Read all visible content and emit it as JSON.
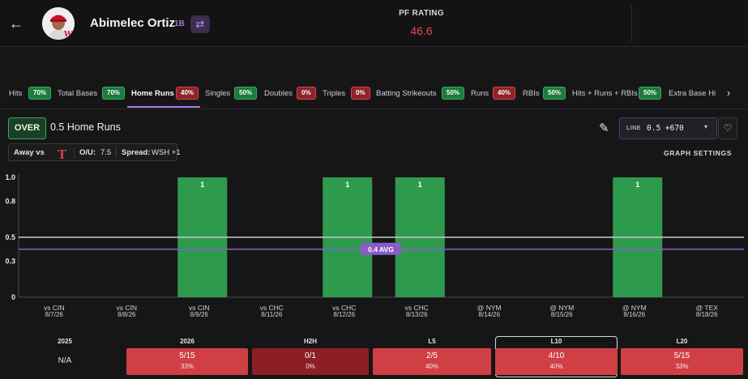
{
  "header": {
    "back_icon": "arrow-left-icon",
    "player_name": "Abimelec Ortiz",
    "position": "1B",
    "swap_icon": "swap-icon",
    "pf_rating_label": "PF RATING",
    "pf_rating_value": "46.6"
  },
  "tabs": [
    {
      "label": "Hits",
      "badge": "70%",
      "tone": "green"
    },
    {
      "label": "Total Bases",
      "badge": "70%",
      "tone": "green"
    },
    {
      "label": "Home Runs",
      "badge": "40%",
      "tone": "red",
      "active": true
    },
    {
      "label": "Singles",
      "badge": "50%",
      "tone": "green"
    },
    {
      "label": "Doubles",
      "badge": "0%",
      "tone": "red"
    },
    {
      "label": "Triples",
      "badge": "0%",
      "tone": "red"
    },
    {
      "label": "Batting Strikeouts",
      "badge": "50%",
      "tone": "green"
    },
    {
      "label": "Runs",
      "badge": "40%",
      "tone": "red"
    },
    {
      "label": "RBIs",
      "badge": "50%",
      "tone": "green"
    },
    {
      "label": "Hits + Runs + RBIs",
      "badge": "50%",
      "tone": "green"
    },
    {
      "label": "Extra Base Hi"
    }
  ],
  "controls": {
    "over_label": "OVER",
    "market_label": "0.5 Home Runs",
    "venue": "Away vs",
    "ou": "O/U:",
    "ou_value": "7.5",
    "spread": "Spread:",
    "spread_value": "WSH +1",
    "team_logo_letter": "T",
    "line_label": "LINE",
    "line_value": "0.5 +670",
    "graph_settings": "GRAPH SETTINGS"
  },
  "chart_data": {
    "type": "bar",
    "categories": [
      [
        "vs CIN",
        "8/7/26"
      ],
      [
        "vs CIN",
        "8/8/26"
      ],
      [
        "vs CIN",
        "8/9/26"
      ],
      [
        "vs CHC",
        "8/11/26"
      ],
      [
        "vs CHC",
        "8/12/26"
      ],
      [
        "vs CHC",
        "8/13/26"
      ],
      [
        "@ NYM",
        "8/14/26"
      ],
      [
        "@ NYM",
        "8/15/26"
      ],
      [
        "@ NYM",
        "8/16/26"
      ],
      [
        "@ TEX",
        "8/18/26"
      ]
    ],
    "values": [
      0,
      0,
      1,
      0,
      1,
      1,
      0,
      0,
      1,
      0
    ],
    "yticks": [
      "1.0",
      "0.8",
      "0.5",
      "0.3",
      "0"
    ],
    "ytick_values": [
      1.0,
      0.8,
      0.5,
      0.3,
      0
    ],
    "ylim": [
      0,
      1
    ],
    "line": 0.5,
    "avg": 0.4,
    "avg_label": "0.4 AVG",
    "bar_color": "#2e9a4e",
    "avg_color": "#8a5cc7"
  },
  "summary": [
    {
      "head": "2025",
      "na": "N/A"
    },
    {
      "head": "2026",
      "frac": "5/15",
      "pct": "33%",
      "tone": "r1"
    },
    {
      "head": "H2H",
      "frac": "0/1",
      "pct": "0%",
      "tone": "r2"
    },
    {
      "head": "L5",
      "frac": "2/5",
      "pct": "40%",
      "tone": "r1"
    },
    {
      "head": "L10",
      "frac": "4/10",
      "pct": "40%",
      "tone": "r1",
      "selected": true
    },
    {
      "head": "L20",
      "frac": "5/15",
      "pct": "33%",
      "tone": "r1"
    }
  ]
}
